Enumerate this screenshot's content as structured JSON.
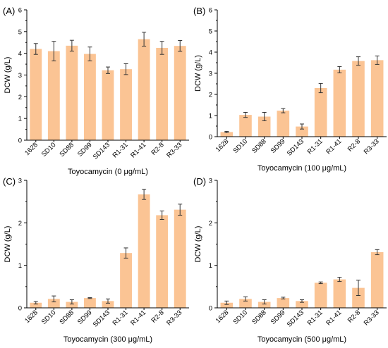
{
  "chart_data": [
    {
      "type": "bar",
      "panel_label": "(A)",
      "categories": [
        "1628",
        "SD10",
        "SD88",
        "SD99",
        "SD143",
        "R1-31",
        "R1-41",
        "R2-8",
        "R3-33"
      ],
      "values": [
        4.2,
        4.1,
        4.35,
        3.97,
        3.22,
        3.27,
        4.65,
        4.25,
        4.34
      ],
      "errors": [
        0.25,
        0.45,
        0.25,
        0.32,
        0.15,
        0.25,
        0.32,
        0.3,
        0.25
      ],
      "xlabel": "Toyocamycin (0 μg/mL)",
      "ylabel": "DCW (g/L)",
      "ylim": [
        0,
        6
      ],
      "yticks": [
        "0",
        "1",
        "2",
        "3",
        "4",
        "5",
        "6"
      ],
      "color": "#fbc494"
    },
    {
      "type": "bar",
      "panel_label": "(B)",
      "categories": [
        "1628",
        "SD10",
        "SD88",
        "SD99",
        "SD143",
        "R1-31",
        "R1-41",
        "R2-8",
        "R3-33"
      ],
      "values": [
        0.22,
        1.03,
        0.95,
        1.23,
        0.48,
        2.3,
        3.17,
        3.58,
        3.62
      ],
      "errors": [
        0.03,
        0.12,
        0.2,
        0.1,
        0.12,
        0.22,
        0.15,
        0.2,
        0.2
      ],
      "xlabel": "Toyocamycin (100 μg/mL)",
      "ylabel": "DCW (g/L)",
      "ylim": [
        0,
        6
      ],
      "yticks": [
        "0",
        "1",
        "2",
        "3",
        "4",
        "5",
        "6"
      ],
      "color": "#fbc494"
    },
    {
      "type": "bar",
      "panel_label": "(C)",
      "categories": [
        "1628",
        "SD10",
        "SD88",
        "SD99",
        "SD143",
        "R1-31",
        "R1-41",
        "R2-8",
        "R3-33"
      ],
      "values": [
        0.12,
        0.21,
        0.14,
        0.23,
        0.16,
        1.29,
        2.67,
        2.18,
        2.31
      ],
      "errors": [
        0.03,
        0.07,
        0.05,
        0.01,
        0.05,
        0.12,
        0.12,
        0.1,
        0.13
      ],
      "xlabel": "Toyocamycin (300 μg/mL)",
      "ylabel": "DCW (g/L)",
      "ylim": [
        0,
        3
      ],
      "yticks": [
        "0",
        "1",
        "2",
        "3"
      ],
      "color": "#fbc494"
    },
    {
      "type": "bar",
      "panel_label": "(D)",
      "categories": [
        "1628",
        "SD10",
        "SD88",
        "SD99",
        "SD143",
        "R1-31",
        "R1-41",
        "R2-8",
        "R3-33"
      ],
      "values": [
        0.12,
        0.21,
        0.14,
        0.23,
        0.16,
        0.59,
        0.67,
        0.47,
        1.31
      ],
      "errors": [
        0.04,
        0.05,
        0.05,
        0.02,
        0.03,
        0.02,
        0.05,
        0.18,
        0.06
      ],
      "xlabel": "Toyocamycin (500 μg/mL)",
      "ylabel": "DCW (g/L)",
      "ylim": [
        0,
        3
      ],
      "yticks": [
        "0",
        "1",
        "2",
        "3"
      ],
      "color": "#fbc494"
    }
  ]
}
